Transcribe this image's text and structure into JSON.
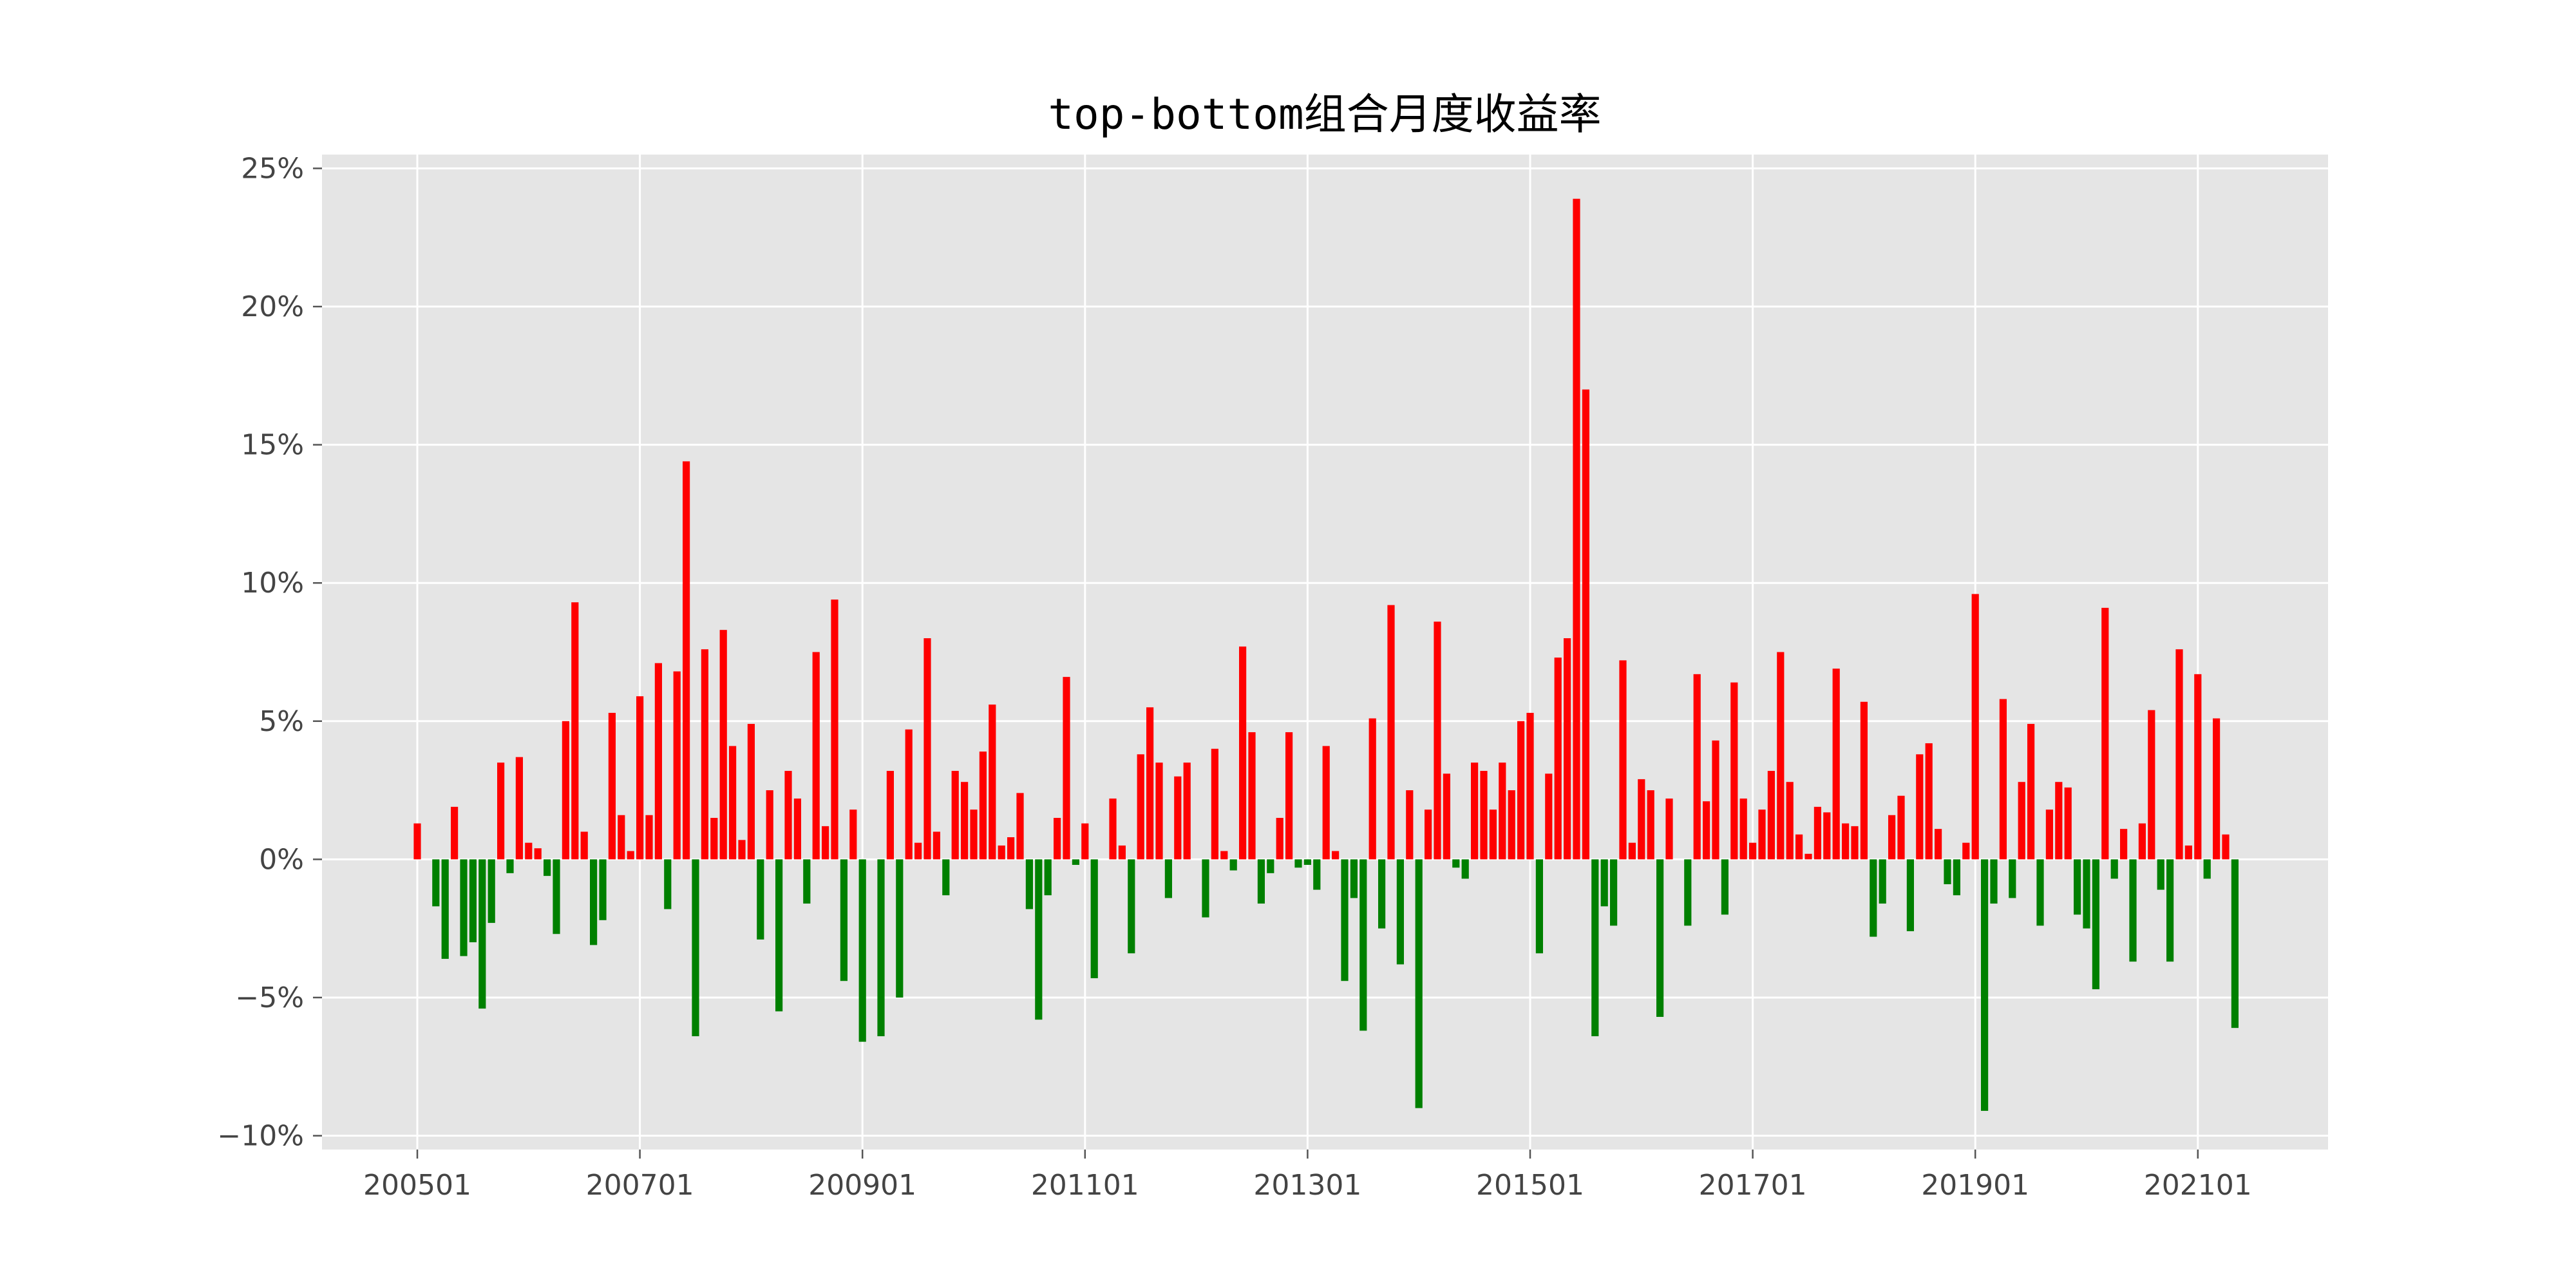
{
  "chart_data": {
    "type": "bar",
    "title": "top-bottom组合月度收益率",
    "xlabel": "",
    "ylabel": "",
    "x_start": "200501",
    "x_tick_labels": [
      "200501",
      "200701",
      "200901",
      "201101",
      "201301",
      "201501",
      "201701",
      "201901",
      "202101"
    ],
    "y_tick_labels": [
      "−10%",
      "−5%",
      "0%",
      "5%",
      "10%",
      "15%",
      "20%",
      "25%"
    ],
    "y_ticks": [
      -10,
      -5,
      0,
      5,
      10,
      15,
      20,
      25
    ],
    "ylim": [
      -10.5,
      25.5
    ],
    "y_unit": "%",
    "grid": true,
    "colors": {
      "positive": "#ff0000",
      "negative": "#008000",
      "background": "#e5e5e5",
      "grid": "#ffffff"
    },
    "values": [
      1.3,
      0.0,
      -1.7,
      -3.6,
      1.9,
      -3.5,
      -3.0,
      -5.4,
      -2.3,
      3.5,
      -0.5,
      3.7,
      0.6,
      0.4,
      -0.6,
      -2.7,
      5.0,
      9.3,
      1.0,
      -3.1,
      -2.2,
      5.3,
      1.6,
      0.3,
      5.9,
      1.6,
      7.1,
      -1.8,
      6.8,
      14.4,
      -6.4,
      7.6,
      1.5,
      8.3,
      4.1,
      0.7,
      4.9,
      -2.9,
      2.5,
      -5.5,
      3.2,
      2.2,
      -1.6,
      7.5,
      1.2,
      9.4,
      -4.4,
      1.8,
      -6.6,
      0.0,
      -6.4,
      3.2,
      -5.0,
      4.7,
      0.6,
      8.0,
      1.0,
      -1.3,
      3.2,
      2.8,
      1.8,
      3.9,
      5.6,
      0.5,
      0.8,
      2.4,
      -1.8,
      -5.8,
      -1.3,
      1.5,
      6.6,
      -0.2,
      1.3,
      -4.3,
      0.0,
      2.2,
      0.5,
      -3.4,
      3.8,
      5.5,
      3.5,
      -1.4,
      3.0,
      3.5,
      0.0,
      -2.1,
      4.0,
      0.3,
      -0.4,
      7.7,
      4.6,
      -1.6,
      -0.5,
      1.5,
      4.6,
      -0.3,
      -0.2,
      -1.1,
      4.1,
      0.3,
      -4.4,
      -1.4,
      -6.2,
      5.1,
      -2.5,
      9.2,
      -3.8,
      2.5,
      -9.0,
      1.8,
      8.6,
      3.1,
      -0.3,
      -0.7,
      3.5,
      3.2,
      1.8,
      3.5,
      2.5,
      5.0,
      5.3,
      -3.4,
      3.1,
      7.3,
      8.0,
      23.9,
      17.0,
      -6.4,
      -1.7,
      -2.4,
      7.2,
      0.6,
      2.9,
      2.5,
      -5.7,
      2.2,
      0.0,
      -2.4,
      6.7,
      2.1,
      4.3,
      -2.0,
      6.4,
      2.2,
      0.6,
      1.8,
      3.2,
      7.5,
      2.8,
      0.9,
      0.2,
      1.9,
      1.7,
      6.9,
      1.3,
      1.2,
      5.7,
      -2.8,
      -1.6,
      1.6,
      2.3,
      -2.6,
      3.8,
      4.2,
      1.1,
      -0.9,
      -1.3,
      0.6,
      9.6,
      -9.1,
      -1.6,
      5.8,
      -1.4,
      2.8,
      4.9,
      -2.4,
      1.8,
      2.8,
      2.6,
      -2.0,
      -2.5,
      -4.7,
      9.1,
      -0.7,
      1.1,
      -3.7,
      1.3,
      5.4,
      -1.1,
      -3.7,
      7.6,
      0.5,
      6.7,
      -0.7,
      5.1,
      0.9,
      -6.1
    ]
  }
}
